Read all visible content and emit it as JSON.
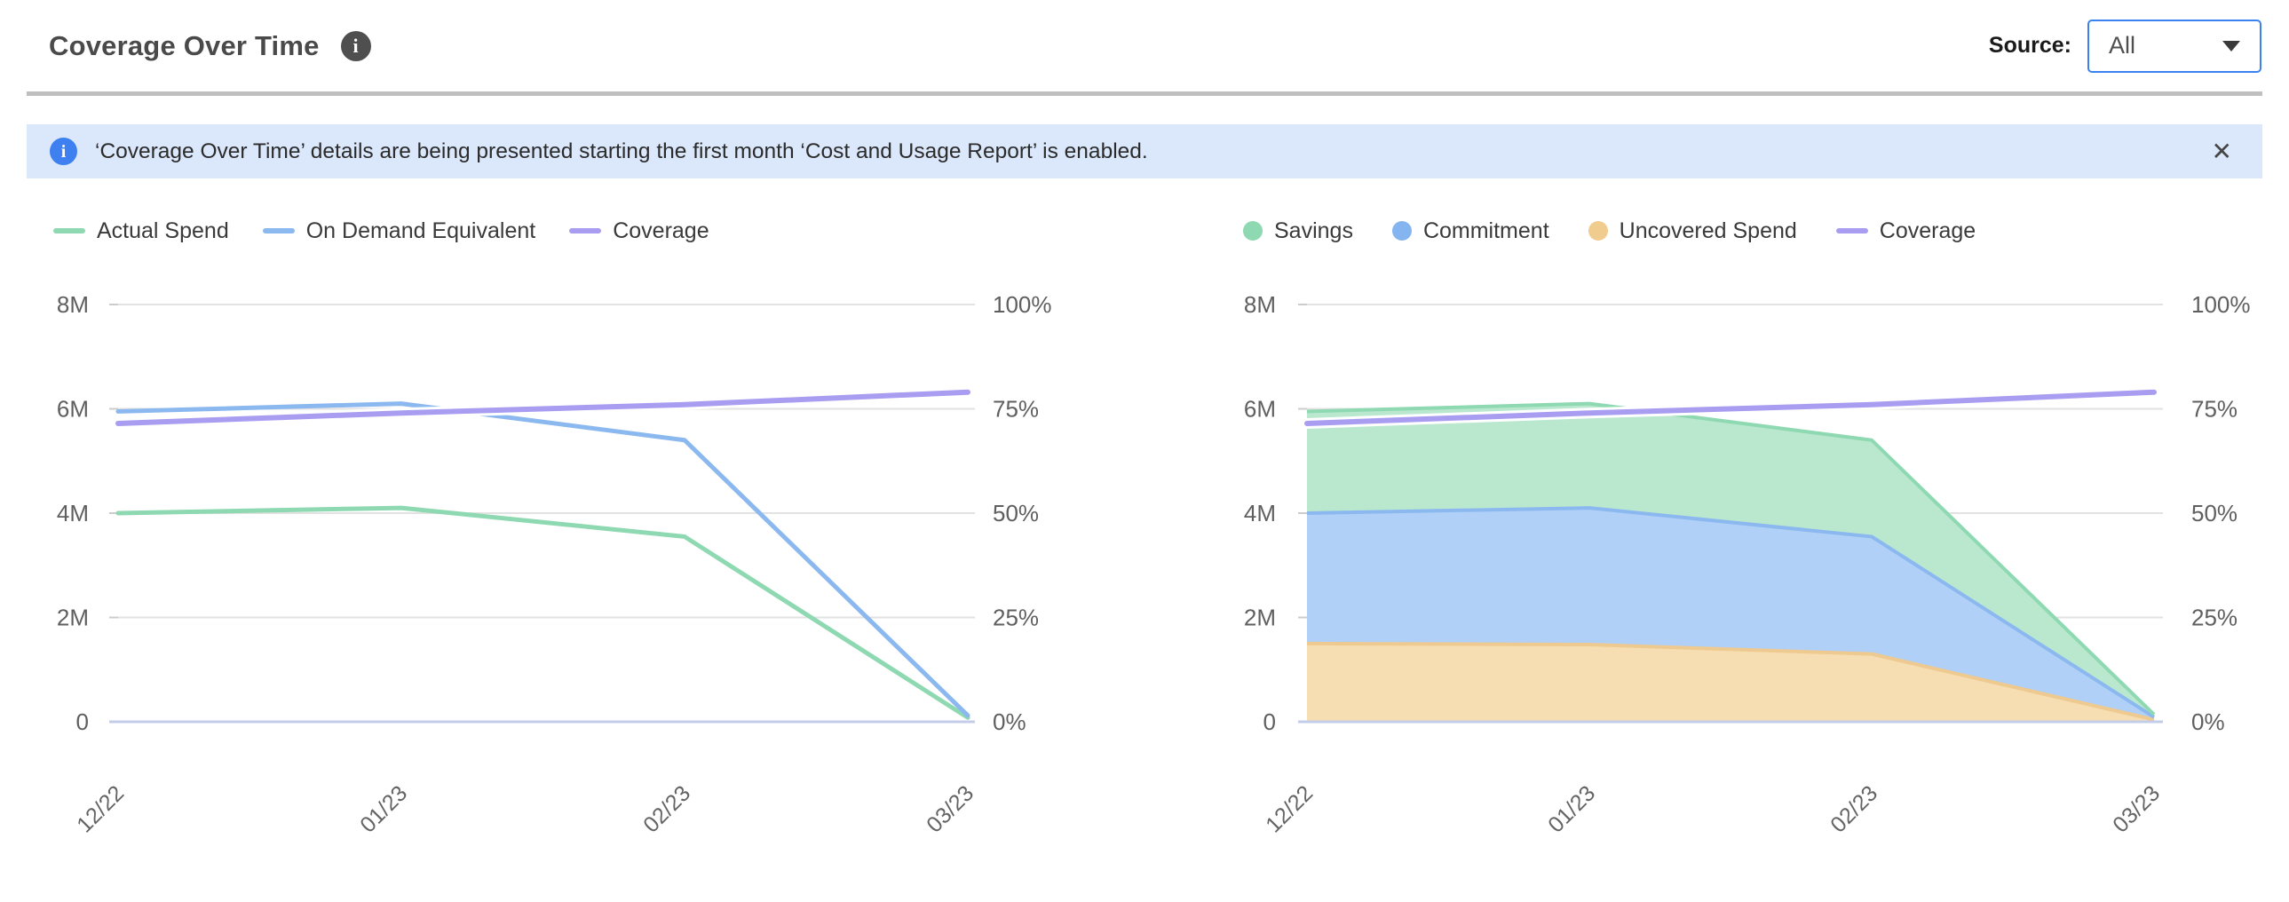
{
  "header": {
    "title": "Coverage Over Time",
    "source_label": "Source:",
    "source_value": "All"
  },
  "banner": {
    "text": "‘Coverage Over Time’ details are being presented starting the first month ‘Cost and Usage Report’ is enabled.",
    "close_glyph": "✕"
  },
  "colors": {
    "accent_blue": "#3b82f0",
    "banner_bg": "#dbe8fb",
    "info_icon_dark": "#4f4f4f",
    "actual_spend_green": "#8ed9b2",
    "on_demand_blue": "#8cb8f0",
    "coverage_purple": "#a89df0",
    "uncovered_orange_fill": "#f6deb2",
    "commitment_blue_fill": "#b0d0f7",
    "savings_green_fill": "#bae8cf"
  },
  "legend_left": [
    {
      "label": "Actual Spend",
      "marker": "line",
      "color": "#8ed9b2"
    },
    {
      "label": "On Demand Equivalent",
      "marker": "line",
      "color": "#8cb8f0"
    },
    {
      "label": "Coverage",
      "marker": "line",
      "color": "#a89df0"
    }
  ],
  "legend_right": [
    {
      "label": "Savings",
      "marker": "circle",
      "color": "#8ed9b2"
    },
    {
      "label": "Commitment",
      "marker": "circle",
      "color": "#85b5f0"
    },
    {
      "label": "Uncovered Spend",
      "marker": "circle",
      "color": "#f0cc8e"
    },
    {
      "label": "Coverage",
      "marker": "line",
      "color": "#a89df0"
    }
  ],
  "chart_data": [
    {
      "type": "line",
      "title": "Coverage Over Time - spend lines",
      "categories": [
        "12/22",
        "01/23",
        "02/23",
        "03/23"
      ],
      "y_left_ticks": [
        "8M",
        "6M",
        "4M",
        "2M",
        "0"
      ],
      "y_right_ticks": [
        "100%",
        "75%",
        "50%",
        "25%",
        "0%"
      ],
      "y_left_max_M": 8,
      "y_right_max_pct": 100,
      "grid": true,
      "legend_position": "top",
      "series": [
        {
          "name": "Actual Spend",
          "axis": "left",
          "unit": "M",
          "color": "#8ed9b2",
          "values": [
            4.0,
            4.1,
            3.55,
            0.08
          ]
        },
        {
          "name": "On Demand Equivalent",
          "axis": "left",
          "unit": "M",
          "color": "#8cb8f0",
          "values": [
            5.95,
            6.1,
            5.4,
            0.12
          ]
        },
        {
          "name": "Coverage",
          "axis": "right",
          "unit": "%",
          "color": "#a89df0",
          "values": [
            71.5,
            74,
            76,
            79
          ]
        }
      ]
    },
    {
      "type": "area",
      "title": "Coverage Over Time - stacked spend breakdown",
      "categories": [
        "12/22",
        "01/23",
        "02/23",
        "03/23"
      ],
      "y_left_ticks": [
        "8M",
        "6M",
        "4M",
        "2M",
        "0"
      ],
      "y_right_ticks": [
        "100%",
        "75%",
        "50%",
        "25%",
        "0%"
      ],
      "y_left_max_M": 8,
      "y_right_max_pct": 100,
      "grid": true,
      "stack_order_bottom_to_top": [
        "Uncovered Spend",
        "Commitment",
        "Savings"
      ],
      "series": [
        {
          "name": "Uncovered Spend",
          "axis": "left",
          "unit": "M",
          "fill": "#f6deb2",
          "edge": "#eeca90",
          "values": [
            1.5,
            1.48,
            1.3,
            0.04
          ]
        },
        {
          "name": "Commitment",
          "axis": "left",
          "unit": "M",
          "fill": "#b0d0f7",
          "edge": "#8cb8f0",
          "values": [
            2.5,
            2.62,
            2.25,
            0.05
          ]
        },
        {
          "name": "Savings",
          "axis": "left",
          "unit": "M",
          "fill": "#bae8cf",
          "edge": "#8ed9b2",
          "values": [
            1.95,
            2.0,
            1.85,
            0.05
          ]
        },
        {
          "name": "Coverage",
          "axis": "right",
          "unit": "%",
          "color": "#a89df0",
          "values": [
            71.5,
            74,
            76,
            79
          ]
        }
      ]
    }
  ]
}
